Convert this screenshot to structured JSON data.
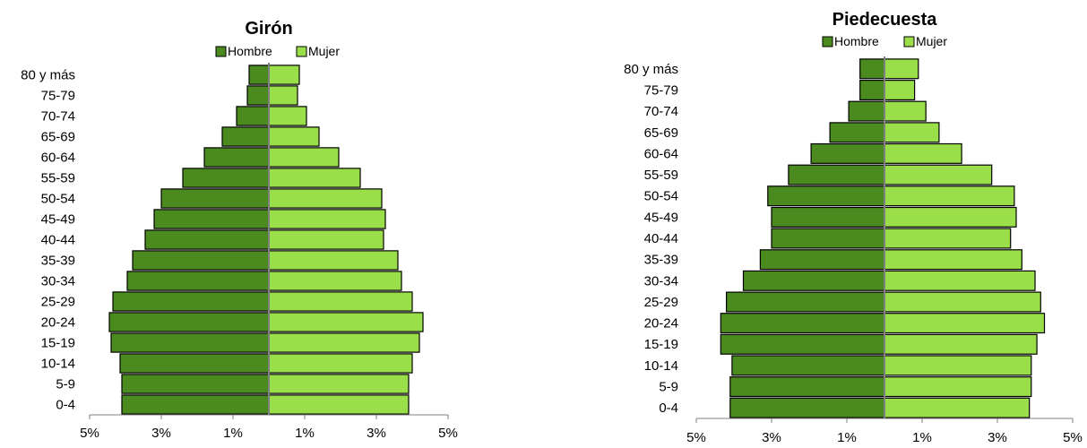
{
  "colors": {
    "male": "#4a8a1f",
    "female": "#9adf4a",
    "edge": "#000000",
    "axis": "#808080"
  },
  "legend": {
    "male_label": "Hombre",
    "female_label": "Mujer"
  },
  "chart_data": [
    {
      "type": "bar",
      "orientation": "horizontal-pyramid",
      "title": "Girón",
      "legend_position": "top",
      "categories": [
        "0-4",
        "5-9",
        "10-14",
        "15-19",
        "20-24",
        "25-29",
        "30-34",
        "35-39",
        "40-44",
        "45-49",
        "50-54",
        "55-59",
        "60-64",
        "65-69",
        "70-74",
        "75-79",
        "80 y más"
      ],
      "series": [
        {
          "name": "Hombre",
          "values": [
            4.1,
            4.1,
            4.15,
            4.4,
            4.45,
            4.35,
            3.95,
            3.8,
            3.45,
            3.2,
            3.0,
            2.4,
            1.8,
            1.3,
            0.9,
            0.6,
            0.55
          ]
        },
        {
          "name": "Mujer",
          "values": [
            3.9,
            3.9,
            4.0,
            4.2,
            4.3,
            4.0,
            3.7,
            3.6,
            3.2,
            3.25,
            3.15,
            2.55,
            1.95,
            1.4,
            1.05,
            0.8,
            0.85
          ]
        }
      ],
      "xlim": [
        -5,
        5
      ],
      "tick_values": [
        -5,
        -3,
        -1,
        1,
        3,
        5
      ],
      "tick_labels": [
        "5%",
        "3%",
        "1%",
        "1%",
        "3%",
        "5%"
      ],
      "grid": false
    },
    {
      "type": "bar",
      "orientation": "horizontal-pyramid",
      "title": "Piedecuesta",
      "legend_position": "top",
      "categories": [
        "0-4",
        "5-9",
        "10-14",
        "15-19",
        "20-24",
        "25-29",
        "30-34",
        "35-39",
        "40-44",
        "45-49",
        "50-54",
        "55-59",
        "60-64",
        "65-69",
        "70-74",
        "75-79",
        "80 y más"
      ],
      "series": [
        {
          "name": "Hombre",
          "values": [
            4.1,
            4.1,
            4.05,
            4.35,
            4.35,
            4.2,
            3.75,
            3.3,
            3.0,
            3.0,
            3.1,
            2.55,
            1.95,
            1.45,
            0.95,
            0.65,
            0.65
          ]
        },
        {
          "name": "Mujer",
          "values": [
            3.85,
            3.9,
            3.9,
            4.05,
            4.25,
            4.15,
            4.0,
            3.65,
            3.35,
            3.5,
            3.45,
            2.85,
            2.05,
            1.45,
            1.1,
            0.8,
            0.9
          ]
        }
      ],
      "xlim": [
        -5,
        5
      ],
      "tick_values": [
        -5,
        -3,
        -1,
        1,
        3,
        5
      ],
      "tick_labels": [
        "5%",
        "3%",
        "1%",
        "1%",
        "3%",
        "5%"
      ],
      "grid": false
    }
  ]
}
